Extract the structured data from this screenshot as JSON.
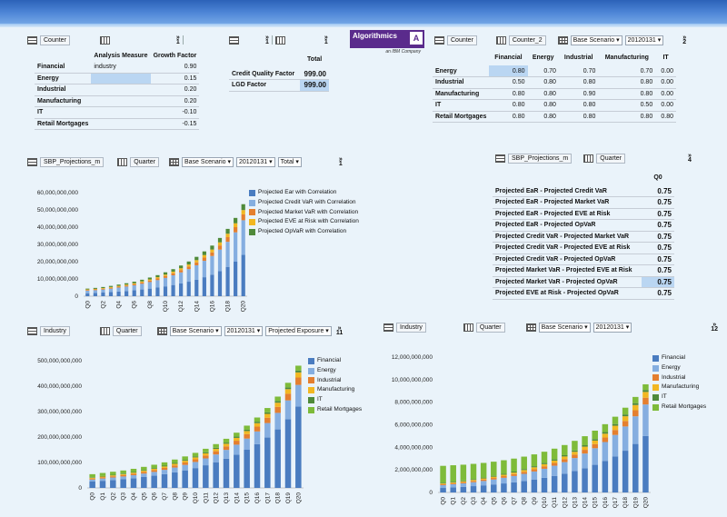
{
  "toolbars": {
    "t1": {
      "tag": "Counter",
      "badge": "1"
    },
    "t2": {
      "badge1": "1",
      "badge2": "1"
    },
    "t3": {
      "tag1": "Counter",
      "tag2": "Counter_2",
      "sel1": "Base Scenario",
      "sel2": "20120131",
      "badge": "2"
    },
    "t4": {
      "tag1": "SBP_Projections_m",
      "tag2": "Quarter",
      "sel1": "Base Scenario",
      "sel2": "20120131",
      "sel3": "Total",
      "badge": "1"
    },
    "t5": {
      "tag1": "SBP_Projections_m",
      "tag2": "Quarter",
      "badge": "4"
    },
    "t6": {
      "tag1": "Industry",
      "tag2": "Quarter",
      "sel1": "Base Scenario",
      "sel2": "20120131",
      "sel3": "Projected Exposure",
      "badge": "11"
    },
    "t7": {
      "tag1": "Industry",
      "tag2": "Quarter",
      "sel1": "Base Scenario",
      "sel2": "20120131",
      "badge": "12"
    }
  },
  "logo": {
    "text": "Algorithmics",
    "sub": "an IBM Company",
    "mark": "A"
  },
  "growth_table": {
    "headers": [
      "Analysis Measure",
      "Growth Factor"
    ],
    "rows": [
      {
        "label": "Financial",
        "measure": "industry",
        "value": "0.90"
      },
      {
        "label": "Energy",
        "measure": "",
        "value": "0.15"
      },
      {
        "label": "Industrial",
        "measure": "",
        "value": "0.20"
      },
      {
        "label": "Manufacturing",
        "measure": "",
        "value": "0.20"
      },
      {
        "label": "IT",
        "measure": "",
        "value": "-0.10"
      },
      {
        "label": "Retail Mortgages",
        "measure": "",
        "value": "-0.15"
      }
    ]
  },
  "factor_table": {
    "header": "Total",
    "rows": [
      {
        "label": "Credit Quality Factor",
        "value": "999.00"
      },
      {
        "label": "LGD Factor",
        "value": "999.00"
      }
    ]
  },
  "corr_table": {
    "headers": [
      "Financial",
      "Energy",
      "Industrial",
      "Manufacturing",
      "IT"
    ],
    "rows": [
      {
        "label": "Energy",
        "values": [
          "0.80",
          "0.70",
          "0.70",
          "0.70",
          "0.00"
        ]
      },
      {
        "label": "Industrial",
        "values": [
          "0.50",
          "0.80",
          "0.80",
          "0.80",
          "0.00"
        ]
      },
      {
        "label": "Manufacturing",
        "values": [
          "0.80",
          "0.80",
          "0.90",
          "0.80",
          "0.00"
        ]
      },
      {
        "label": "IT",
        "values": [
          "0.80",
          "0.80",
          "0.80",
          "0.50",
          "0.00"
        ]
      },
      {
        "label": "Retail Mortgages",
        "values": [
          "0.80",
          "0.80",
          "0.80",
          "0.80",
          "0.80"
        ]
      }
    ]
  },
  "q0_table": {
    "header": "Q0",
    "rows": [
      {
        "label": "Projected EaR - Projected Credit VaR",
        "value": "0.75"
      },
      {
        "label": "Projected EaR - Projected Market VaR",
        "value": "0.75"
      },
      {
        "label": "Projected EaR - Projected EVE at Risk",
        "value": "0.75"
      },
      {
        "label": "Projected EaR - Projected OpVaR",
        "value": "0.75"
      },
      {
        "label": "Projected Credit VaR - Projected Market VaR",
        "value": "0.75"
      },
      {
        "label": "Projected Credit VaR - Projected EVE at Risk",
        "value": "0.75"
      },
      {
        "label": "Projected Credit VaR - Projected OpVaR",
        "value": "0.75"
      },
      {
        "label": "Projected Market VaR - Projected EVE at Risk",
        "value": "0.75"
      },
      {
        "label": "Projected Market VaR - Projected OpVaR",
        "value": "0.75"
      },
      {
        "label": "Projected EVE at Risk - Projected OpVaR",
        "value": "0.75"
      }
    ]
  },
  "chart_data": [
    {
      "type": "bar",
      "stacked": true,
      "ylim": [
        0,
        60000000000
      ],
      "yticks": [
        "0",
        "10,000,000,000",
        "20,000,000,000",
        "30,000,000,000",
        "40,000,000,000",
        "50,000,000,000",
        "60,000,000,000"
      ],
      "categories": [
        "Q0",
        "Q1",
        "Q2",
        "Q3",
        "Q4",
        "Q5",
        "Q6",
        "Q7",
        "Q8",
        "Q9",
        "Q10",
        "Q11",
        "Q12",
        "Q13",
        "Q14",
        "Q15",
        "Q16",
        "Q17",
        "Q18",
        "Q19",
        "Q20"
      ],
      "xticklabels": [
        "Q0",
        "Q2",
        "Q4",
        "Q6",
        "Q8",
        "Q10",
        "Q12",
        "Q14",
        "Q16",
        "Q18",
        "Q20"
      ],
      "series": [
        {
          "name": "Projected Ear with Correlation",
          "color": "#4a7cc0",
          "values": [
            1700000000.0,
            1900000000.0,
            2100000000.0,
            2400000000.0,
            2700000000.0,
            3000000000.0,
            3400000000.0,
            3900000000.0,
            4400000000.0,
            5000000000.0,
            5700000000.0,
            6500000000.0,
            7400000000.0,
            8400000000.0,
            9600000000.0,
            11000000000.0,
            12500000000.0,
            14500000000.0,
            17000000000.0,
            20000000000.0,
            24000000000.0
          ]
        },
        {
          "name": "Projected Credit VaR with Correlation",
          "color": "#85aee0",
          "values": [
            1500000000.0,
            1600000000.0,
            1800000000.0,
            2000000000.0,
            2300000000.0,
            2600000000.0,
            2900000000.0,
            3300000000.0,
            3800000000.0,
            4300000000.0,
            4900000000.0,
            5600000000.0,
            6400000000.0,
            7300000000.0,
            8300000000.0,
            9500000000.0,
            10800000000.0,
            12500000000.0,
            14500000000.0,
            17000000000.0,
            20000000000.0
          ]
        },
        {
          "name": "Projected Market VaR with Correlation",
          "color": "#e47f2f",
          "values": [
            400000000.0,
            430000000.0,
            470000000.0,
            520000000.0,
            570000000.0,
            630000000.0,
            700000000.0,
            780000000.0,
            870000000.0,
            970000000.0,
            1100000000.0,
            1200000000.0,
            1350000000.0,
            1500000000.0,
            1700000000.0,
            1900000000.0,
            2100000000.0,
            2400000000.0,
            2700000000.0,
            3000000000.0,
            3400000000.0
          ]
        },
        {
          "name": "Projected EVE at Risk with Correlation",
          "color": "#f2b722",
          "values": [
            300000000.0,
            330000000.0,
            360000000.0,
            400000000.0,
            440000000.0,
            490000000.0,
            540000000.0,
            600000000.0,
            670000000.0,
            750000000.0,
            840000000.0,
            940000000.0,
            1050000000.0,
            1170000000.0,
            1300000000.0,
            1450000000.0,
            1620000000.0,
            1800000000.0,
            2000000000.0,
            2250000000.0,
            2500000000.0
          ]
        },
        {
          "name": "Projected OpVaR with Correlation",
          "color": "#4f8a3a",
          "values": [
            500000000.0,
            550000000.0,
            600000000.0,
            660000000.0,
            730000000.0,
            800000000.0,
            880000000.0,
            970000000.0,
            1070000000.0,
            1180000000.0,
            1300000000.0,
            1430000000.0,
            1570000000.0,
            1730000000.0,
            1900000000.0,
            2100000000.0,
            2300000000.0,
            2550000000.0,
            2800000000.0,
            3100000000.0,
            3400000000.0
          ]
        }
      ]
    },
    {
      "type": "bar",
      "stacked": true,
      "ylim": [
        0,
        500000000000
      ],
      "yticks": [
        "0",
        "100,000,000,000",
        "200,000,000,000",
        "300,000,000,000",
        "400,000,000,000",
        "500,000,000,000"
      ],
      "categories": [
        "Q0",
        "Q1",
        "Q2",
        "Q3",
        "Q4",
        "Q5",
        "Q6",
        "Q7",
        "Q8",
        "Q9",
        "Q10",
        "Q11",
        "Q12",
        "Q13",
        "Q14",
        "Q15",
        "Q16",
        "Q17",
        "Q18",
        "Q19",
        "Q20"
      ],
      "series": [
        {
          "name": "Financial",
          "color": "#4a7cc0",
          "values": [
            25000000000.0,
            28000000000.0,
            31000000000.0,
            34000000000.0,
            38000000000.0,
            43000000000.0,
            48000000000.0,
            54000000000.0,
            61000000000.0,
            69000000000.0,
            78000000000.0,
            89000000000.0,
            101000000000.0,
            115000000000.0,
            131000000000.0,
            150000000000.0,
            172000000000.0,
            198000000000.0,
            230000000000.0,
            270000000000.0,
            320000000000.0
          ]
        },
        {
          "name": "Energy",
          "color": "#85aee0",
          "values": [
            8000000000.0,
            9000000000.0,
            10000000000.0,
            11000000000.0,
            12000000000.0,
            13500000000.0,
            15000000000.0,
            17000000000.0,
            19000000000.0,
            21500000000.0,
            24000000000.0,
            27000000000.0,
            30500000000.0,
            34500000000.0,
            39000000000.0,
            44000000000.0,
            50000000000.0,
            57000000000.0,
            65000000000.0,
            74000000000.0,
            85000000000.0
          ]
        },
        {
          "name": "Industrial",
          "color": "#e47f2f",
          "values": [
            4000000000.0,
            4400000000.0,
            4800000000.0,
            5300000000.0,
            5800000000.0,
            6400000000.0,
            7000000000.0,
            7700000000.0,
            8500000000.0,
            9400000000.0,
            10400000000.0,
            11500000000.0,
            12700000000.0,
            14000000000.0,
            15500000000.0,
            17200000000.0,
            19000000000.0,
            21000000000.0,
            23500000000.0,
            26000000000.0,
            29000000000.0
          ]
        },
        {
          "name": "Manufacturing",
          "color": "#f2b722",
          "values": [
            3000000000.0,
            3300000000.0,
            3600000000.0,
            3900000000.0,
            4300000000.0,
            4700000000.0,
            5200000000.0,
            5700000000.0,
            6300000000.0,
            6900000000.0,
            7600000000.0,
            8400000000.0,
            9200000000.0,
            10100000000.0,
            11200000000.0,
            12300000000.0,
            13600000000.0,
            15000000000.0,
            16500000000.0,
            18200000000.0,
            20000000000.0
          ]
        },
        {
          "name": "IT",
          "color": "#4f8a3a",
          "values": [
            2000000000.0,
            2100000000.0,
            2200000000.0,
            2400000000.0,
            2500000000.0,
            2700000000.0,
            2900000000.0,
            3100000000.0,
            3300000000.0,
            3500000000.0,
            3800000000.0,
            4000000000.0,
            4300000000.0,
            4600000000.0,
            4900000000.0,
            5300000000.0,
            5700000000.0,
            6100000000.0,
            6500000000.0,
            7000000000.0,
            7500000000.0
          ]
        },
        {
          "name": "Retail Mortgages",
          "color": "#7ebb3a",
          "values": [
            12000000000.0,
            12000000000.0,
            12000000000.0,
            12000000000.0,
            12500000000.0,
            12500000000.0,
            13000000000.0,
            13000000000.0,
            13500000000.0,
            13500000000.0,
            14000000000.0,
            14000000000.0,
            14500000000.0,
            15000000000.0,
            15500000000.0,
            16000000000.0,
            16500000000.0,
            17000000000.0,
            17500000000.0,
            18000000000.0,
            19000000000.0
          ]
        }
      ]
    },
    {
      "type": "bar",
      "stacked": true,
      "ylim": [
        0,
        12000000000
      ],
      "yticks": [
        "0",
        "2,000,000,000",
        "4,000,000,000",
        "6,000,000,000",
        "8,000,000,000",
        "10,000,000,000",
        "12,000,000,000"
      ],
      "categories": [
        "Q0",
        "Q1",
        "Q2",
        "Q3",
        "Q4",
        "Q5",
        "Q6",
        "Q7",
        "Q8",
        "Q9",
        "Q10",
        "Q11",
        "Q12",
        "Q13",
        "Q14",
        "Q15",
        "Q16",
        "Q17",
        "Q18",
        "Q19",
        "Q20"
      ],
      "series": [
        {
          "name": "Financial",
          "color": "#4a7cc0",
          "values": [
            400000000.0,
            450000000.0,
            500000000.0,
            560000000.0,
            630000000.0,
            710000000.0,
            800000000.0,
            900000000.0,
            1020000000.0,
            1150000000.0,
            1300000000.0,
            1470000000.0,
            1670000000.0,
            1900000000.0,
            2150000000.0,
            2450000000.0,
            2800000000.0,
            3200000000.0,
            3700000000.0,
            4300000000.0,
            5000000000.0
          ]
        },
        {
          "name": "Energy",
          "color": "#85aee0",
          "values": [
            250000000.0,
            280000000.0,
            310000000.0,
            350000000.0,
            390000000.0,
            440000000.0,
            500000000.0,
            560000000.0,
            630000000.0,
            710000000.0,
            800000000.0,
            900000000.0,
            1020000000.0,
            1150000000.0,
            1300000000.0,
            1470000000.0,
            1670000000.0,
            1900000000.0,
            2150000000.0,
            2450000000.0,
            2800000000.0
          ]
        },
        {
          "name": "Industrial",
          "color": "#e47f2f",
          "values": [
            80000000.0,
            90000000.0,
            100000000.0,
            110000000.0,
            120000000.0,
            135000000.0,
            150000000.0,
            165000000.0,
            180000000.0,
            200000000.0,
            220000000.0,
            245000000.0,
            270000000.0,
            300000000.0,
            330000000.0,
            365000000.0,
            400000000.0,
            440000000.0,
            490000000.0,
            540000000.0,
            600000000.0
          ]
        },
        {
          "name": "Manufacturing",
          "color": "#f2b722",
          "values": [
            70000000.0,
            80000000.0,
            85000000.0,
            95000000.0,
            105000000.0,
            115000000.0,
            125000000.0,
            140000000.0,
            155000000.0,
            170000000.0,
            190000000.0,
            210000000.0,
            230000000.0,
            255000000.0,
            280000000.0,
            310000000.0,
            340000000.0,
            375000000.0,
            415000000.0,
            460000000.0,
            510000000.0
          ]
        },
        {
          "name": "IT",
          "color": "#4f8a3a",
          "values": [
            60000000.0,
            63000000.0,
            66000000.0,
            70000000.0,
            74000000.0,
            78000000.0,
            82000000.0,
            87000000.0,
            92000000.0,
            97000000.0,
            102000000.0,
            108000000.0,
            114000000.0,
            120000000.0,
            127000000.0,
            134000000.0,
            142000000.0,
            150000000.0,
            158000000.0,
            167000000.0,
            176000000.0
          ]
        },
        {
          "name": "Retail Mortgages",
          "color": "#7ebb3a",
          "values": [
            1500000000.0,
            1450000000.0,
            1400000000.0,
            1350000000.0,
            1300000000.0,
            1250000000.0,
            1200000000.0,
            1150000000.0,
            1100000000.0,
            1050000000.0,
            1000000000.0,
            950000000.0,
            900000000.0,
            850000000.0,
            800000000.0,
            750000000.0,
            700000000.0,
            650000000.0,
            600000000.0,
            550000000.0,
            500000000.0
          ]
        }
      ]
    }
  ]
}
